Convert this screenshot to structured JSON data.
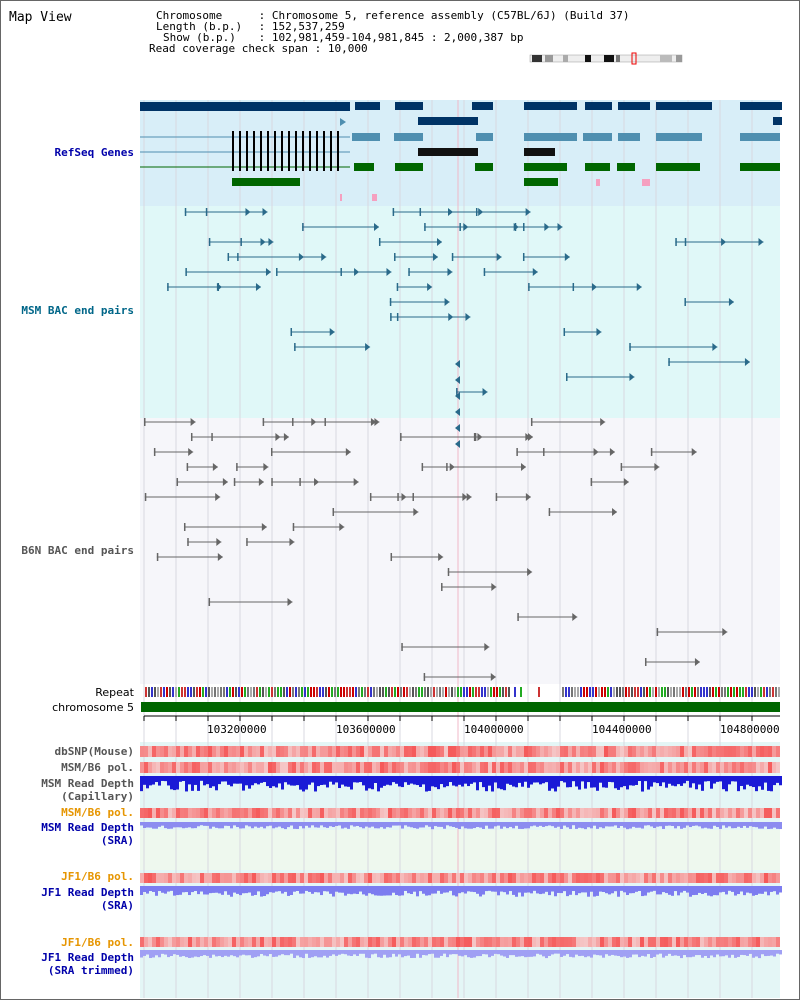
{
  "title": "Map View",
  "info": {
    "chromosome_label": "Chromosome",
    "chromosome_value": "Chromosome 5, reference assembly (C57BL/6J) (Build 37)",
    "length_label": "Length (b.p.)",
    "length_value": "152,537,259",
    "show_label": "Show (b.p.)",
    "show_value": "102,981,459-104,981,845 : 2,000,387 bp",
    "coverage_label": "Read coverage check span",
    "coverage_value": "10,000"
  },
  "tracks": {
    "refseq": "RefSeq Genes",
    "msm_bac": "MSM BAC end pairs",
    "b6n_bac": "B6N BAC end pairs",
    "repeat": "Repeat",
    "chromosome": "chromosome 5",
    "dbsnp": "dbSNP(Mouse)",
    "msm_b6_pol_1": "MSM/B6 pol.",
    "msm_depth_cap_1": "MSM Read Depth",
    "msm_depth_cap_2": "(Capillary)",
    "msm_b6_pol_2": "MSM/B6 pol.",
    "msm_depth_sra_1": "MSM Read Depth",
    "msm_depth_sra_2": "(SRA)",
    "jf1_b6_pol_1": "JF1/B6 pol.",
    "jf1_depth_sra_1": "JF1 Read Depth",
    "jf1_depth_sra_2": "(SRA)",
    "jf1_b6_pol_2": "JF1/B6 pol.",
    "jf1_depth_trim_1": "JF1 Read Depth",
    "jf1_depth_trim_2": "(SRA trimmed)"
  },
  "axis_ticks": [
    "103200000",
    "103600000",
    "104000000",
    "104400000",
    "104800000"
  ],
  "colors": {
    "refseq_bg": "#d8eef8",
    "msm_bg": "#e0f8f8",
    "b6n_bg": "#f6f6fa",
    "gene_dark": "#003366",
    "gene_mid": "#4f8fb0",
    "gene_green": "#006600",
    "bac_teal": "#2a6a8a",
    "bac_gray": "#666666",
    "label_blue": "#0000aa",
    "label_teal": "#006688",
    "label_orange": "#e69500",
    "label_gray": "#555555"
  }
}
